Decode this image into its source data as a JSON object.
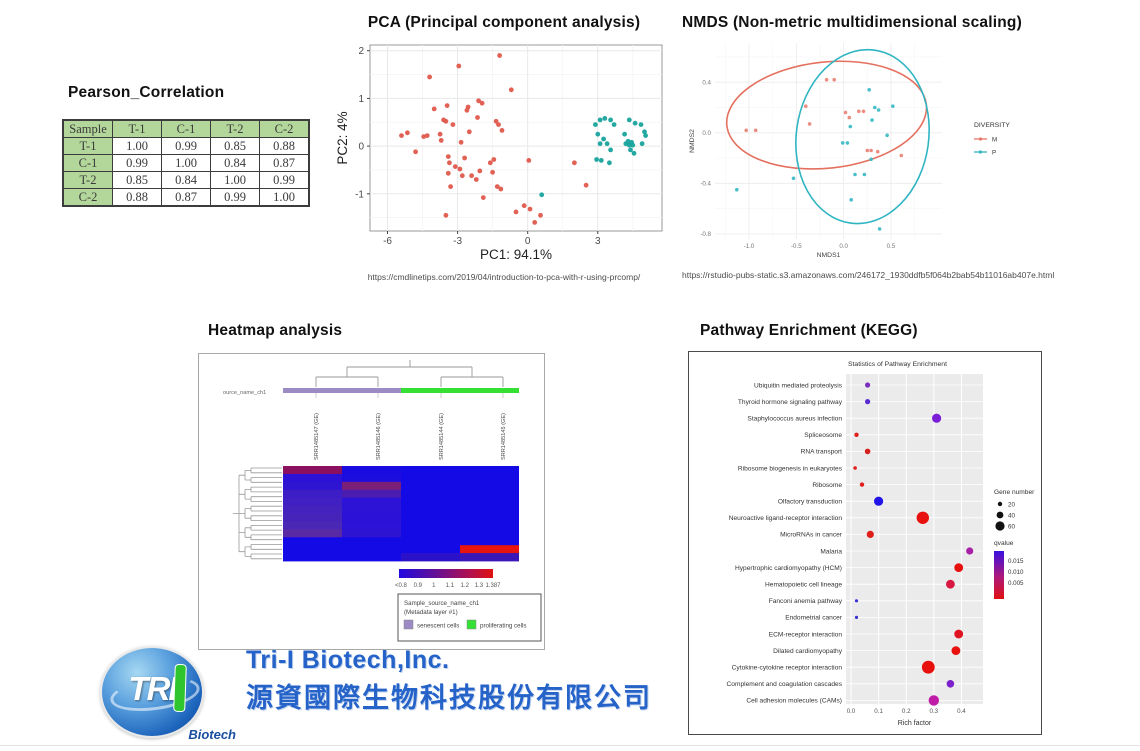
{
  "pearson": {
    "title": "Pearson_Correlation",
    "table": {
      "headers": [
        "Sample",
        "T-1",
        "C-1",
        "T-2",
        "C-2"
      ],
      "rows": [
        {
          "label": "T-1",
          "values": [
            "1.00",
            "0.99",
            "0.85",
            "0.88"
          ]
        },
        {
          "label": "C-1",
          "values": [
            "0.99",
            "1.00",
            "0.84",
            "0.87"
          ]
        },
        {
          "label": "T-2",
          "values": [
            "0.85",
            "0.84",
            "1.00",
            "0.99"
          ]
        },
        {
          "label": "C-2",
          "values": [
            "0.88",
            "0.87",
            "0.99",
            "1.00"
          ]
        }
      ],
      "header_bg": "#b3d69b"
    }
  },
  "pca": {
    "title": "PCA (Principal component analysis)",
    "caption": "https://cmdlinetips.com/2019/04/introduction-to-pca-with-r-using-prcomp/"
  },
  "nmds": {
    "title": "NMDS (Non-metric multidimensional scaling)",
    "caption": "https://rstudio-pubs-static.s3.amazonaws.com/246172_1930ddfb5f064b2bab54b11016ab407e.html"
  },
  "heatmap": {
    "title": "Heatmap analysis"
  },
  "kegg": {
    "title": "Pathway Enrichment (KEGG)"
  },
  "branding": {
    "name_en": "Tri-I Biotech,Inc.",
    "name_zh": "源資國際生物科技股份有限公司",
    "logo_text": "TRI",
    "logo_sub": "Biotech",
    "brand_blue": "#2563c9"
  },
  "chart_data": [
    {
      "type": "scatter",
      "title": "PCA (Principal component analysis)",
      "xlabel": "PC1: 94.1%",
      "ylabel": "PC2: 4%",
      "xlim": [
        -6.75,
        5.75
      ],
      "ylim": [
        -1.78,
        2.12
      ],
      "xticks": [
        -6,
        -3,
        0,
        3
      ],
      "xminor": [
        -4.5,
        -1.5,
        1.5,
        4.5
      ],
      "yticks": [
        -1,
        0,
        1,
        2
      ],
      "yminor": [
        -1.5,
        -0.5,
        0.5,
        1.5
      ],
      "grid": true,
      "series": [
        {
          "name": "group-red",
          "color": "#E0584C",
          "points": [
            [
              -5.4,
              0.22
            ],
            [
              -5.15,
              0.28
            ],
            [
              -4.8,
              -0.12
            ],
            [
              -4.45,
              0.2
            ],
            [
              -4.3,
              0.22
            ],
            [
              -4.2,
              1.45
            ],
            [
              -4.0,
              0.78
            ],
            [
              -3.75,
              0.25
            ],
            [
              -3.7,
              0.12
            ],
            [
              -3.6,
              0.55
            ],
            [
              -3.5,
              0.52
            ],
            [
              -3.45,
              0.85
            ],
            [
              -3.5,
              -1.45
            ],
            [
              -3.4,
              -0.22
            ],
            [
              -3.4,
              -0.57
            ],
            [
              -3.35,
              -0.35
            ],
            [
              -3.3,
              -0.85
            ],
            [
              -3.2,
              0.45
            ],
            [
              -3.1,
              -0.43
            ],
            [
              -2.95,
              1.68
            ],
            [
              -2.9,
              -0.48
            ],
            [
              -2.85,
              0.08
            ],
            [
              -2.8,
              -0.62
            ],
            [
              -2.7,
              -0.25
            ],
            [
              -2.6,
              0.75
            ],
            [
              -2.55,
              0.82
            ],
            [
              -2.5,
              0.3
            ],
            [
              -2.4,
              -0.62
            ],
            [
              -2.2,
              -0.7
            ],
            [
              -2.15,
              0.6
            ],
            [
              -2.1,
              0.95
            ],
            [
              -2.05,
              -0.52
            ],
            [
              -1.95,
              0.9
            ],
            [
              -1.9,
              -1.08
            ],
            [
              -1.6,
              -0.35
            ],
            [
              -1.5,
              -0.55
            ],
            [
              -1.45,
              -0.28
            ],
            [
              -1.35,
              0.52
            ],
            [
              -1.3,
              -0.85
            ],
            [
              -1.25,
              0.45
            ],
            [
              -1.2,
              1.9
            ],
            [
              -1.15,
              -0.9
            ],
            [
              -1.1,
              0.33
            ],
            [
              -0.7,
              1.18
            ],
            [
              -0.5,
              -1.38
            ],
            [
              -0.15,
              -1.25
            ],
            [
              0.05,
              -0.3
            ],
            [
              0.1,
              -1.32
            ],
            [
              0.3,
              -1.6
            ],
            [
              0.55,
              -1.45
            ],
            [
              2.0,
              -0.35
            ],
            [
              2.5,
              -0.82
            ]
          ]
        },
        {
          "name": "group-teal",
          "color": "#18A39D",
          "points": [
            [
              0.6,
              -1.02
            ],
            [
              2.95,
              -0.28
            ],
            [
              3.15,
              -0.3
            ],
            [
              3.5,
              -0.35
            ],
            [
              2.9,
              0.45
            ],
            [
              3.1,
              0.55
            ],
            [
              3.3,
              0.58
            ],
            [
              3.55,
              0.55
            ],
            [
              3.7,
              0.45
            ],
            [
              3.0,
              0.25
            ],
            [
              3.1,
              0.05
            ],
            [
              3.25,
              0.15
            ],
            [
              3.4,
              0.05
            ],
            [
              3.55,
              -0.08
            ],
            [
              4.35,
              0.55
            ],
            [
              4.6,
              0.48
            ],
            [
              4.15,
              0.25
            ],
            [
              4.2,
              0.05
            ],
            [
              4.3,
              0.1
            ],
            [
              4.35,
              0.02
            ],
            [
              4.45,
              0.08
            ],
            [
              4.4,
              -0.08
            ],
            [
              4.5,
              0.02
            ],
            [
              4.55,
              -0.15
            ],
            [
              4.85,
              0.45
            ],
            [
              5.0,
              0.3
            ],
            [
              5.05,
              0.22
            ],
            [
              4.9,
              0.05
            ]
          ]
        }
      ]
    },
    {
      "type": "scatter",
      "title": "NMDS (Non-metric multidimensional scaling)",
      "xlabel": "NMDS1",
      "ylabel": "NMDS2",
      "xlim": [
        -1.36,
        1.04
      ],
      "ylim": [
        -0.84,
        0.71
      ],
      "xticks": [
        -1.0,
        -0.5,
        0.0,
        0.5
      ],
      "xminor": [
        -1.25,
        -0.75,
        -0.25,
        0.25,
        0.75
      ],
      "yticks": [
        0.4,
        0.0,
        -0.4,
        -0.8
      ],
      "yminor": [
        0.6,
        0.2,
        -0.2,
        -0.6
      ],
      "grid": true,
      "legend": {
        "title": "DIVERSITY",
        "position": "right",
        "items": [
          {
            "label": "M",
            "color": "#E8756A"
          },
          {
            "label": "P",
            "color": "#2FB5C2"
          }
        ]
      },
      "ellipses": [
        {
          "group": "M",
          "color": "#E4705F",
          "cx": -0.18,
          "cy": 0.14,
          "rx": 1.06,
          "ry": 0.42,
          "rotate": -6
        },
        {
          "group": "P",
          "color": "#2FB5C2",
          "cx": 0.2,
          "cy": -0.03,
          "rx": 0.7,
          "ry": 0.69,
          "rotate": 8
        }
      ],
      "series": [
        {
          "name": "M",
          "color": "#E98073",
          "points": [
            [
              -1.03,
              0.02
            ],
            [
              -0.93,
              0.02
            ],
            [
              -0.4,
              0.21
            ],
            [
              -0.36,
              0.07
            ],
            [
              -0.18,
              0.42
            ],
            [
              -0.1,
              0.42
            ],
            [
              0.02,
              0.16
            ],
            [
              0.06,
              0.12
            ],
            [
              0.16,
              0.17
            ],
            [
              0.21,
              0.17
            ],
            [
              0.25,
              -0.14
            ],
            [
              0.29,
              -0.14
            ],
            [
              0.36,
              -0.15
            ],
            [
              0.61,
              -0.18
            ]
          ]
        },
        {
          "name": "P",
          "color": "#35B8C4",
          "points": [
            [
              -1.13,
              -0.45
            ],
            [
              -0.53,
              -0.36
            ],
            [
              0.27,
              0.34
            ],
            [
              0.33,
              0.2
            ],
            [
              0.37,
              0.18
            ],
            [
              0.52,
              0.21
            ],
            [
              0.3,
              0.1
            ],
            [
              0.07,
              0.05
            ],
            [
              0.04,
              -0.08
            ],
            [
              -0.01,
              -0.08
            ],
            [
              0.46,
              -0.02
            ],
            [
              0.29,
              -0.21
            ],
            [
              0.12,
              -0.33
            ],
            [
              0.22,
              -0.33
            ],
            [
              0.08,
              -0.53
            ],
            [
              0.38,
              -0.76
            ]
          ]
        }
      ]
    },
    {
      "type": "heatmap",
      "title": "Heatmap analysis",
      "track_label": "ource_name_ch1",
      "col_labels": [
        "SRR1485147 (GE)",
        "SRR1485146 (GE)",
        "SRR1485144 (GE)",
        "SRR1485145 (GE)"
      ],
      "groups": [
        {
          "label": "senescent cells",
          "color": "#9B8AC4",
          "cols": [
            0,
            1
          ]
        },
        {
          "label": "proliferating cells",
          "color": "#35E035",
          "cols": [
            2,
            3
          ]
        }
      ],
      "rows": [
        [
          "#8C1060",
          "#1A0BE0",
          "#140AE6",
          "#140AE6"
        ],
        [
          "#2B12D6",
          "#1C0CDE",
          "#140AE6",
          "#140AE6"
        ],
        [
          "#2F15D2",
          "#7A1E78",
          "#140AE6",
          "#140AE6"
        ],
        [
          "#3D1DC6",
          "#4A1DB0",
          "#140AE6",
          "#140AE6"
        ],
        [
          "#4020C2",
          "#2C13D5",
          "#140AE6",
          "#140AE6"
        ],
        [
          "#4422BE",
          "#2C13D5",
          "#140AE6",
          "#140AE6"
        ],
        [
          "#4624BA",
          "#2B12D6",
          "#140AE6",
          "#140AE6"
        ],
        [
          "#4A27B5",
          "#2C13D5",
          "#140AE6",
          "#140AE6"
        ],
        [
          "#5A2AA4",
          "#2E14D2",
          "#140AE6",
          "#140AE6"
        ],
        [
          "#140AE6",
          "#140AE6",
          "#140AE6",
          "#140AE6"
        ],
        [
          "#140AE6",
          "#140AE6",
          "#140AE6",
          "#E8150F"
        ],
        [
          "#140AE6",
          "#140AE6",
          "#2B12C8",
          "#3A18B8"
        ]
      ],
      "scale": {
        "labels": [
          "<0.8",
          "0.9",
          "1",
          "1.1",
          "1.2",
          "1.3",
          "1.387"
        ],
        "gradient": [
          "#2208E0",
          "#4A0FB0",
          "#7A1080",
          "#B01050",
          "#E01010"
        ]
      },
      "legend_title": [
        "Sample_source_name_ch1",
        "(Metadata layer #1)"
      ]
    },
    {
      "type": "dotplot",
      "title": "Statistics of Pathway Enrichment",
      "xlabel": "Rich factor",
      "xticks": [
        "0.0",
        "0.1",
        "0.2",
        "0.3",
        "0.4"
      ],
      "xlim": [
        0,
        0.46
      ],
      "categories": [
        "Ubiquitin mediated proteolysis",
        "Thyroid hormone signaling pathway",
        "Staphylococcus aureus infection",
        "Spliceosome",
        "RNA transport",
        "Ribosome biogenesis in eukaryotes",
        "Ribosome",
        "Olfactory transduction",
        "Neuroactive ligand-receptor interaction",
        "MicroRNAs in cancer",
        "Malaria",
        "Hypertrophic cardiomyopathy (HCM)",
        "Hematopoietic cell lineage",
        "Fanconi anemia pathway",
        "Endometrial cancer",
        "ECM-receptor interaction",
        "Dilated cardiomyopathy",
        "Cytokine-cytokine receptor interaction",
        "Complement and coagulation cascades",
        "Cell adhesion molecules (CAMs)"
      ],
      "rich_factor": [
        0.06,
        0.06,
        0.31,
        0.02,
        0.06,
        0.015,
        0.04,
        0.1,
        0.26,
        0.07,
        0.43,
        0.39,
        0.36,
        0.02,
        0.02,
        0.39,
        0.38,
        0.28,
        0.36,
        0.3
      ],
      "dot_radius": [
        2.6,
        2.6,
        4.6,
        2.2,
        2.8,
        1.8,
        2.2,
        4.6,
        6.2,
        3.6,
        3.6,
        4.4,
        4.4,
        1.6,
        1.6,
        4.4,
        4.4,
        6.4,
        3.8,
        5.2
      ],
      "dot_color": [
        "#7B2FBE",
        "#5A2BD0",
        "#7B1FD6",
        "#DE1F1A",
        "#D6201E",
        "#DE1F1A",
        "#DE1F1A",
        "#2214E8",
        "#E8100C",
        "#DE1F1A",
        "#A820A8",
        "#E8100C",
        "#D81840",
        "#3A30D8",
        "#3A30D8",
        "#E01420",
        "#E8100C",
        "#E8100C",
        "#7B22CC",
        "#C01CA8"
      ],
      "legend": {
        "size_title": "Gene number",
        "sizes": [
          "20",
          "40",
          "60"
        ],
        "color_title": "qvalue",
        "color_labels": [
          "0.015",
          "0.010",
          "0.005"
        ],
        "gradient_top": "#3A10E0",
        "gradient_bottom": "#E01010"
      }
    }
  ]
}
